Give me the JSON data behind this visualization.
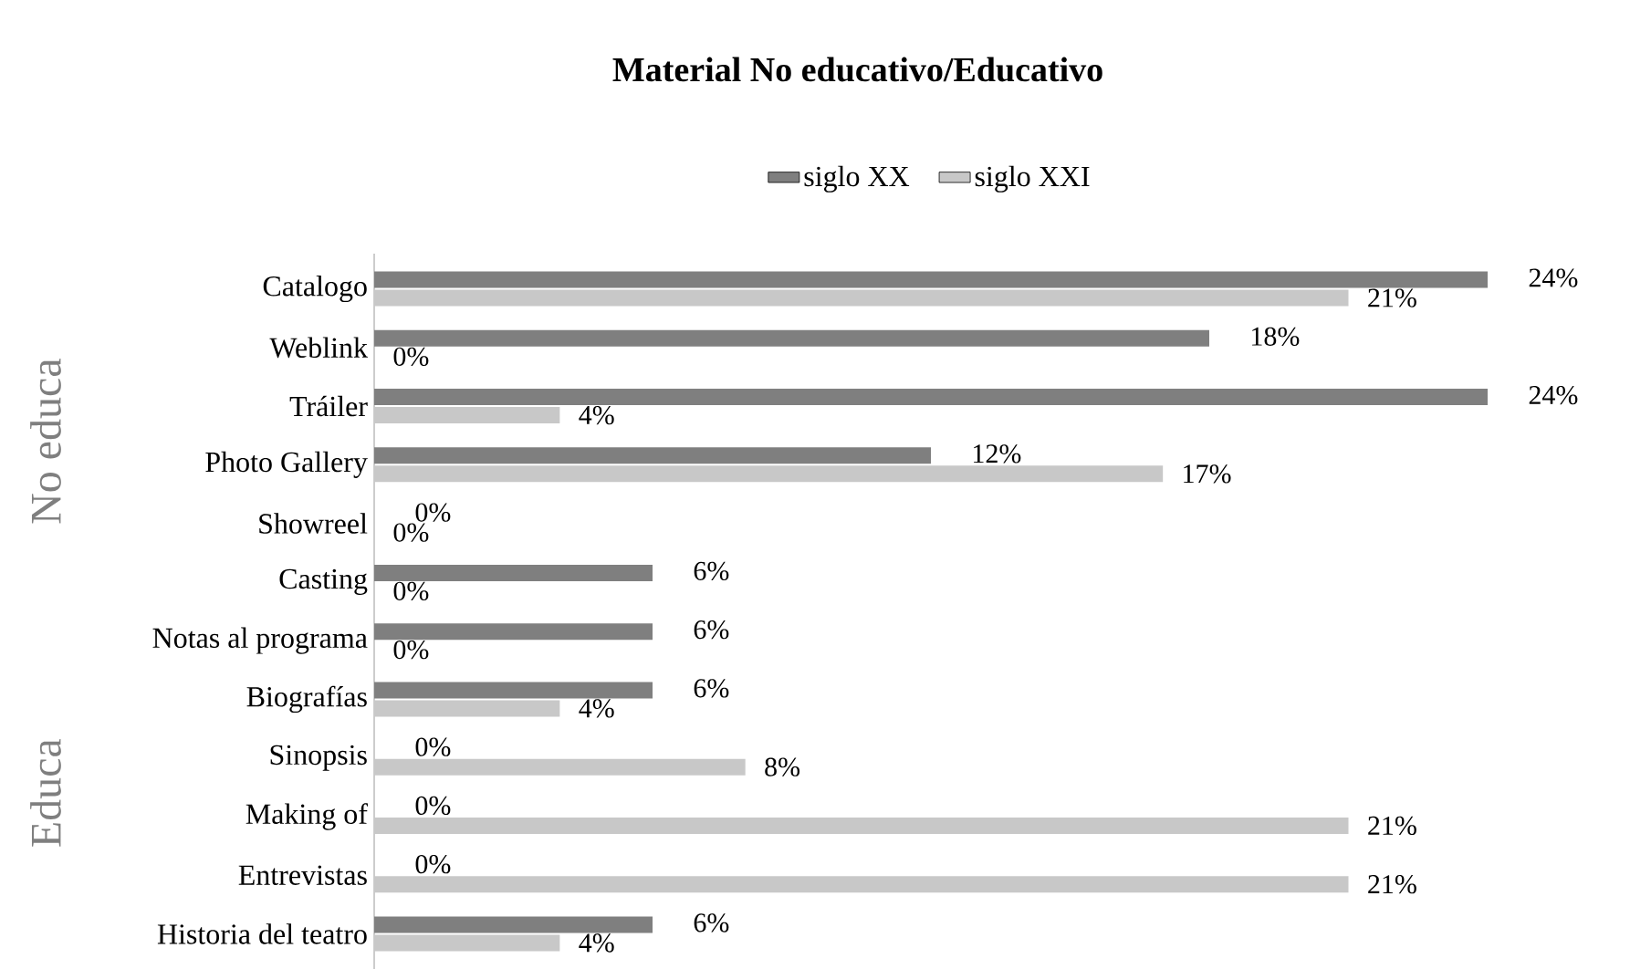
{
  "chart_data": {
    "type": "bar",
    "orientation": "horizontal",
    "title": "Material No educativo/Educativo",
    "categories": [
      "Catalogo",
      "Weblink",
      "Tráiler",
      "Photo Gallery",
      "Showreel",
      "Casting",
      "Notas al programa",
      "Biografías",
      "Sinopsis",
      "Making of",
      "Entrevistas",
      "Historia del teatro"
    ],
    "series": [
      {
        "name": "siglo XX",
        "color": "#7f7f7f",
        "values": [
          24,
          18,
          24,
          12,
          0,
          6,
          6,
          6,
          0,
          0,
          0,
          6
        ],
        "value_labels": [
          "24%",
          "18%",
          "24%",
          "12%",
          "0%",
          "6%",
          "6%",
          "6%",
          "0%",
          "0%",
          "0%",
          "6%"
        ]
      },
      {
        "name": "siglo XXI",
        "color": "#c8c8c8",
        "values": [
          21,
          0,
          4,
          17,
          0,
          0,
          0,
          4,
          8,
          21,
          21,
          4
        ],
        "value_labels": [
          "21%",
          "0%",
          "4%",
          "17%",
          "0%",
          "0%",
          "0%",
          "4%",
          "8%",
          "21%",
          "21%",
          "4%"
        ]
      }
    ],
    "annotations": [
      "No educa",
      "Educa"
    ],
    "legend": "top"
  }
}
